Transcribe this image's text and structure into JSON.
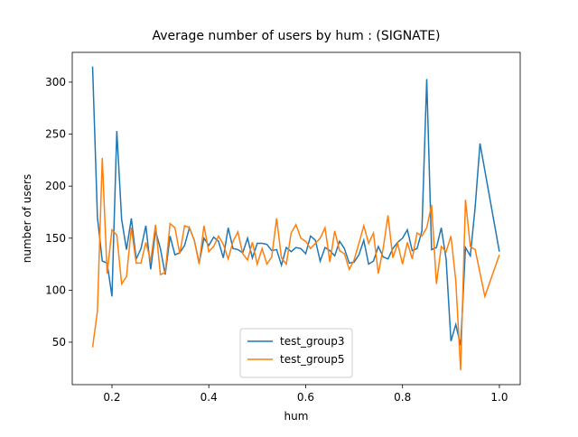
{
  "chart_data": {
    "type": "line",
    "title": "Average number of users by hum : (SIGNATE)",
    "xlabel": "hum",
    "ylabel": "number of users",
    "xlim": [
      0.118,
      1.043
    ],
    "ylim": [
      9.2,
      328.6
    ],
    "xticks": [
      0.2,
      0.4,
      0.6,
      0.8,
      {
        "value": 1,
        "label": "1.0"
      }
    ],
    "yticks": [
      50,
      100,
      150,
      200,
      250,
      300
    ],
    "legend": "lower center",
    "series": [
      {
        "name": "test_group3",
        "color": "#1f77b4",
        "x": [
          0.16,
          0.17,
          0.18,
          0.19,
          0.2,
          0.21,
          0.22,
          0.23,
          0.24,
          0.25,
          0.26,
          0.27,
          0.28,
          0.29,
          0.3,
          0.31,
          0.32,
          0.33,
          0.34,
          0.35,
          0.36,
          0.37,
          0.38,
          0.39,
          0.4,
          0.41,
          0.42,
          0.43,
          0.44,
          0.45,
          0.46,
          0.47,
          0.48,
          0.49,
          0.5,
          0.51,
          0.52,
          0.53,
          0.54,
          0.55,
          0.56,
          0.57,
          0.58,
          0.59,
          0.6,
          0.61,
          0.62,
          0.63,
          0.64,
          0.65,
          0.66,
          0.67,
          0.68,
          0.69,
          0.7,
          0.71,
          0.72,
          0.73,
          0.74,
          0.75,
          0.76,
          0.77,
          0.78,
          0.79,
          0.8,
          0.81,
          0.82,
          0.83,
          0.84,
          0.85,
          0.86,
          0.87,
          0.88,
          0.89,
          0.9,
          0.91,
          0.92,
          0.93,
          0.94,
          0.95,
          0.96,
          1.0
        ],
        "values": [
          315,
          170,
          128,
          126,
          94,
          253,
          168,
          139,
          169,
          130,
          140,
          162,
          120,
          157,
          140,
          115,
          152,
          134,
          136,
          143,
          160,
          148,
          126,
          150,
          143,
          151,
          147,
          131,
          160,
          140,
          139,
          136,
          150,
          131,
          145,
          145,
          144,
          138,
          139,
          124,
          141,
          137,
          141,
          140,
          135,
          152,
          148,
          128,
          141,
          138,
          133,
          147,
          140,
          126,
          127,
          134,
          148,
          125,
          128,
          142,
          132,
          130,
          140,
          146,
          150,
          158,
          138,
          140,
          157,
          303,
          139,
          141,
          160,
          130,
          51,
          67,
          47,
          141,
          133,
          180,
          241,
          137
        ]
      },
      {
        "name": "test_group5",
        "color": "#ff7f0e",
        "x": [
          0.16,
          0.17,
          0.18,
          0.19,
          0.2,
          0.21,
          0.22,
          0.23,
          0.24,
          0.25,
          0.26,
          0.27,
          0.28,
          0.29,
          0.3,
          0.31,
          0.32,
          0.33,
          0.34,
          0.35,
          0.36,
          0.37,
          0.38,
          0.39,
          0.4,
          0.41,
          0.42,
          0.43,
          0.44,
          0.45,
          0.46,
          0.47,
          0.48,
          0.49,
          0.5,
          0.51,
          0.52,
          0.53,
          0.54,
          0.55,
          0.56,
          0.57,
          0.58,
          0.59,
          0.6,
          0.61,
          0.62,
          0.63,
          0.64,
          0.65,
          0.66,
          0.67,
          0.68,
          0.69,
          0.7,
          0.71,
          0.72,
          0.73,
          0.74,
          0.75,
          0.76,
          0.77,
          0.78,
          0.79,
          0.8,
          0.81,
          0.82,
          0.83,
          0.84,
          0.85,
          0.86,
          0.87,
          0.88,
          0.89,
          0.9,
          0.91,
          0.92,
          0.93,
          0.94,
          0.95,
          0.97,
          1.0
        ],
        "values": [
          45,
          80,
          227,
          116,
          158,
          153,
          106,
          113,
          160,
          126,
          126,
          146,
          128,
          163,
          115,
          117,
          164,
          160,
          135,
          162,
          160,
          148,
          125,
          162,
          137,
          142,
          152,
          144,
          130,
          147,
          156,
          135,
          129,
          146,
          125,
          140,
          125,
          132,
          169,
          131,
          125,
          155,
          163,
          150,
          147,
          140,
          145,
          150,
          160,
          127,
          157,
          138,
          135,
          120,
          129,
          145,
          162,
          145,
          155,
          116,
          140,
          172,
          131,
          145,
          125,
          146,
          130,
          155,
          152,
          160,
          182,
          106,
          142,
          137,
          152,
          109,
          23,
          187,
          142,
          139,
          94,
          134
        ]
      }
    ]
  }
}
